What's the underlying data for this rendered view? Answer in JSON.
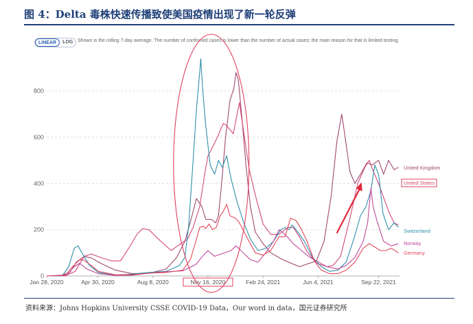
{
  "figure": {
    "title": "图 4：Delta 毒株快速传播致使美国疫情出现了新一轮反弹",
    "source": "资料来源：Johns Hopkins University CSSE COVID-19 Data，Our word in data，国元证券研究所"
  },
  "toolbar": {
    "linear_label": "LINEAR",
    "log_label": "LOG",
    "active": "LINEAR"
  },
  "note": "Shown is the rolling 7-day average. The number of confirmed cases is lower than the number of actual cases; the main reason for that is limited testing.",
  "chart_data": {
    "type": "line",
    "title": "",
    "xlabel": "",
    "ylabel": "",
    "x_range": [
      "2020-01-28",
      "2021-10-30"
    ],
    "ylim": [
      0,
      980
    ],
    "yticks": [
      0,
      200,
      400,
      600,
      800
    ],
    "xticks": [
      "2020-01-28",
      "2020-04-30",
      "2020-08-08",
      "2020-11-16",
      "2021-02-24",
      "2021-06-04",
      "2021-09-22"
    ],
    "xtick_labels": [
      "Jan 28, 2020",
      "Apr 30, 2020",
      "Aug 8, 2020",
      "Nov 16, 2020",
      "Feb 24, 2021",
      "Jun 4, 2021",
      "Sep 22, 2021"
    ],
    "highlighted_tick": "Nov 16, 2020",
    "grid": "horizontal dashed",
    "legend": "direct labels at right",
    "series": [
      {
        "name": "United Kingdom",
        "color": "#a0466e",
        "points": [
          [
            "2020-01-28",
            0
          ],
          [
            "2020-02-20",
            0
          ],
          [
            "2020-03-10",
            15
          ],
          [
            "2020-03-22",
            60
          ],
          [
            "2020-04-05",
            85
          ],
          [
            "2020-04-18",
            78
          ],
          [
            "2020-05-05",
            55
          ],
          [
            "2020-06-01",
            25
          ],
          [
            "2020-07-01",
            10
          ],
          [
            "2020-08-01",
            12
          ],
          [
            "2020-09-01",
            30
          ],
          [
            "2020-09-20",
            80
          ],
          [
            "2020-10-05",
            150
          ],
          [
            "2020-10-18",
            260
          ],
          [
            "2020-10-26",
            335
          ],
          [
            "2020-11-05",
            300
          ],
          [
            "2020-11-12",
            245
          ],
          [
            "2020-11-22",
            245
          ],
          [
            "2020-11-30",
            230
          ],
          [
            "2020-12-05",
            260
          ],
          [
            "2020-12-10",
            380
          ],
          [
            "2020-12-18",
            600
          ],
          [
            "2020-12-26",
            760
          ],
          [
            "2021-01-02",
            810
          ],
          [
            "2021-01-06",
            880
          ],
          [
            "2021-01-10",
            850
          ],
          [
            "2021-01-16",
            700
          ],
          [
            "2021-01-24",
            480
          ],
          [
            "2021-02-01",
            300
          ],
          [
            "2021-02-10",
            190
          ],
          [
            "2021-02-24",
            140
          ],
          [
            "2021-03-10",
            100
          ],
          [
            "2021-04-01",
            70
          ],
          [
            "2021-05-01",
            40
          ],
          [
            "2021-06-01",
            65
          ],
          [
            "2021-06-15",
            150
          ],
          [
            "2021-06-28",
            350
          ],
          [
            "2021-07-08",
            580
          ],
          [
            "2021-07-17",
            700
          ],
          [
            "2021-07-22",
            620
          ],
          [
            "2021-08-01",
            450
          ],
          [
            "2021-08-10",
            400
          ],
          [
            "2021-08-20",
            440
          ],
          [
            "2021-09-01",
            490
          ],
          [
            "2021-09-10",
            480
          ],
          [
            "2021-09-22",
            500
          ],
          [
            "2021-10-01",
            440
          ],
          [
            "2021-10-10",
            500
          ],
          [
            "2021-10-20",
            460
          ],
          [
            "2021-10-28",
            470
          ]
        ]
      },
      {
        "name": "United States",
        "color": "#d04876",
        "points": [
          [
            "2020-01-28",
            0
          ],
          [
            "2020-03-01",
            0
          ],
          [
            "2020-03-20",
            20
          ],
          [
            "2020-04-05",
            85
          ],
          [
            "2020-04-18",
            95
          ],
          [
            "2020-05-05",
            80
          ],
          [
            "2020-05-25",
            65
          ],
          [
            "2020-06-10",
            65
          ],
          [
            "2020-06-25",
            120
          ],
          [
            "2020-07-10",
            180
          ],
          [
            "2020-07-20",
            205
          ],
          [
            "2020-08-01",
            200
          ],
          [
            "2020-08-20",
            155
          ],
          [
            "2020-09-10",
            110
          ],
          [
            "2020-09-25",
            135
          ],
          [
            "2020-10-10",
            160
          ],
          [
            "2020-10-20",
            210
          ],
          [
            "2020-11-01",
            300
          ],
          [
            "2020-11-10",
            440
          ],
          [
            "2020-11-16",
            520
          ],
          [
            "2020-11-25",
            560
          ],
          [
            "2020-12-05",
            610
          ],
          [
            "2020-12-10",
            640
          ],
          [
            "2020-12-14",
            660
          ],
          [
            "2020-12-20",
            650
          ],
          [
            "2021-01-01",
            615
          ],
          [
            "2021-01-08",
            700
          ],
          [
            "2021-01-12",
            750
          ],
          [
            "2021-01-20",
            620
          ],
          [
            "2021-01-30",
            460
          ],
          [
            "2021-02-10",
            350
          ],
          [
            "2021-02-24",
            225
          ],
          [
            "2021-03-10",
            180
          ],
          [
            "2021-03-25",
            180
          ],
          [
            "2021-04-10",
            210
          ],
          [
            "2021-04-20",
            210
          ],
          [
            "2021-05-01",
            170
          ],
          [
            "2021-05-15",
            105
          ],
          [
            "2021-06-01",
            55
          ],
          [
            "2021-06-20",
            40
          ],
          [
            "2021-07-01",
            45
          ],
          [
            "2021-07-15",
            85
          ],
          [
            "2021-08-01",
            250
          ],
          [
            "2021-08-15",
            400
          ],
          [
            "2021-08-28",
            470
          ],
          [
            "2021-09-05",
            500
          ],
          [
            "2021-09-12",
            455
          ],
          [
            "2021-09-22",
            400
          ],
          [
            "2021-10-01",
            340
          ],
          [
            "2021-10-10",
            280
          ],
          [
            "2021-10-20",
            230
          ],
          [
            "2021-10-28",
            220
          ]
        ]
      },
      {
        "name": "Switzerland",
        "color": "#2e8fa8",
        "points": [
          [
            "2020-01-28",
            0
          ],
          [
            "2020-02-25",
            0
          ],
          [
            "2020-03-08",
            40
          ],
          [
            "2020-03-18",
            120
          ],
          [
            "2020-03-25",
            130
          ],
          [
            "2020-04-01",
            100
          ],
          [
            "2020-04-15",
            45
          ],
          [
            "2020-05-01",
            15
          ],
          [
            "2020-06-01",
            3
          ],
          [
            "2020-07-01",
            8
          ],
          [
            "2020-08-01",
            15
          ],
          [
            "2020-09-01",
            20
          ],
          [
            "2020-09-25",
            45
          ],
          [
            "2020-10-05",
            80
          ],
          [
            "2020-10-12",
            220
          ],
          [
            "2020-10-20",
            500
          ],
          [
            "2020-10-26",
            720
          ],
          [
            "2020-11-01",
            880
          ],
          [
            "2020-11-03",
            940
          ],
          [
            "2020-11-06",
            820
          ],
          [
            "2020-11-12",
            650
          ],
          [
            "2020-11-20",
            480
          ],
          [
            "2020-11-28",
            440
          ],
          [
            "2020-12-05",
            500
          ],
          [
            "2020-12-12",
            470
          ],
          [
            "2020-12-20",
            520
          ],
          [
            "2020-12-28",
            420
          ],
          [
            "2021-01-08",
            320
          ],
          [
            "2021-01-20",
            230
          ],
          [
            "2021-02-01",
            160
          ],
          [
            "2021-02-15",
            110
          ],
          [
            "2021-03-01",
            120
          ],
          [
            "2021-03-15",
            150
          ],
          [
            "2021-03-28",
            200
          ],
          [
            "2021-04-05",
            210
          ],
          [
            "2021-04-12",
            200
          ],
          [
            "2021-04-18",
            220
          ],
          [
            "2021-04-28",
            190
          ],
          [
            "2021-05-10",
            150
          ],
          [
            "2021-05-25",
            80
          ],
          [
            "2021-06-10",
            40
          ],
          [
            "2021-06-25",
            20
          ],
          [
            "2021-07-10",
            25
          ],
          [
            "2021-07-25",
            60
          ],
          [
            "2021-08-08",
            160
          ],
          [
            "2021-08-20",
            260
          ],
          [
            "2021-08-30",
            300
          ],
          [
            "2021-09-08",
            370
          ],
          [
            "2021-09-15",
            480
          ],
          [
            "2021-09-22",
            440
          ],
          [
            "2021-09-30",
            270
          ],
          [
            "2021-10-10",
            200
          ],
          [
            "2021-10-20",
            230
          ],
          [
            "2021-10-28",
            210
          ]
        ]
      },
      {
        "name": "Norway",
        "color": "#c0479a",
        "points": [
          [
            "2020-01-28",
            0
          ],
          [
            "2020-03-05",
            5
          ],
          [
            "2020-03-18",
            40
          ],
          [
            "2020-03-28",
            55
          ],
          [
            "2020-04-10",
            30
          ],
          [
            "2020-05-01",
            10
          ],
          [
            "2020-06-01",
            2
          ],
          [
            "2020-07-01",
            3
          ],
          [
            "2020-08-01",
            12
          ],
          [
            "2020-09-01",
            18
          ],
          [
            "2020-10-01",
            22
          ],
          [
            "2020-10-25",
            50
          ],
          [
            "2020-11-08",
            90
          ],
          [
            "2020-11-16",
            110
          ],
          [
            "2020-11-28",
            85
          ],
          [
            "2020-12-10",
            95
          ],
          [
            "2020-12-28",
            110
          ],
          [
            "2021-01-06",
            130
          ],
          [
            "2021-01-15",
            110
          ],
          [
            "2021-02-01",
            70
          ],
          [
            "2021-02-15",
            60
          ],
          [
            "2021-03-01",
            100
          ],
          [
            "2021-03-15",
            150
          ],
          [
            "2021-03-25",
            200
          ],
          [
            "2021-04-05",
            180
          ],
          [
            "2021-04-20",
            140
          ],
          [
            "2021-05-05",
            110
          ],
          [
            "2021-05-20",
            80
          ],
          [
            "2021-06-05",
            60
          ],
          [
            "2021-06-20",
            40
          ],
          [
            "2021-07-10",
            30
          ],
          [
            "2021-07-25",
            45
          ],
          [
            "2021-08-10",
            80
          ],
          [
            "2021-08-25",
            150
          ],
          [
            "2021-09-02",
            230
          ],
          [
            "2021-09-08",
            380
          ],
          [
            "2021-09-12",
            300
          ],
          [
            "2021-09-20",
            230
          ],
          [
            "2021-10-01",
            150
          ],
          [
            "2021-10-15",
            130
          ],
          [
            "2021-10-28",
            140
          ]
        ]
      },
      {
        "name": "Germany",
        "color": "#e04858",
        "points": [
          [
            "2020-01-28",
            0
          ],
          [
            "2020-03-01",
            2
          ],
          [
            "2020-03-15",
            40
          ],
          [
            "2020-03-28",
            70
          ],
          [
            "2020-04-05",
            68
          ],
          [
            "2020-04-18",
            45
          ],
          [
            "2020-05-01",
            20
          ],
          [
            "2020-06-01",
            5
          ],
          [
            "2020-07-01",
            5
          ],
          [
            "2020-08-01",
            12
          ],
          [
            "2020-09-01",
            15
          ],
          [
            "2020-10-01",
            25
          ],
          [
            "2020-10-15",
            70
          ],
          [
            "2020-10-25",
            150
          ],
          [
            "2020-11-01",
            210
          ],
          [
            "2020-11-08",
            215
          ],
          [
            "2020-11-12",
            205
          ],
          [
            "2020-11-18",
            225
          ],
          [
            "2020-11-24",
            200
          ],
          [
            "2020-12-01",
            210
          ],
          [
            "2020-12-08",
            260
          ],
          [
            "2020-12-14",
            280
          ],
          [
            "2020-12-20",
            310
          ],
          [
            "2020-12-26",
            260
          ],
          [
            "2021-01-05",
            250
          ],
          [
            "2021-01-12",
            230
          ],
          [
            "2021-01-25",
            170
          ],
          [
            "2021-02-10",
            100
          ],
          [
            "2021-02-24",
            90
          ],
          [
            "2021-03-10",
            110
          ],
          [
            "2021-03-25",
            170
          ],
          [
            "2021-04-05",
            170
          ],
          [
            "2021-04-15",
            250
          ],
          [
            "2021-04-25",
            240
          ],
          [
            "2021-05-05",
            200
          ],
          [
            "2021-05-15",
            150
          ],
          [
            "2021-05-28",
            65
          ],
          [
            "2021-06-10",
            25
          ],
          [
            "2021-06-25",
            10
          ],
          [
            "2021-07-10",
            10
          ],
          [
            "2021-07-25",
            25
          ],
          [
            "2021-08-10",
            60
          ],
          [
            "2021-08-25",
            120
          ],
          [
            "2021-09-05",
            140
          ],
          [
            "2021-09-15",
            125
          ],
          [
            "2021-09-25",
            110
          ],
          [
            "2021-10-05",
            110
          ],
          [
            "2021-10-15",
            120
          ],
          [
            "2021-10-28",
            100
          ]
        ]
      }
    ]
  }
}
